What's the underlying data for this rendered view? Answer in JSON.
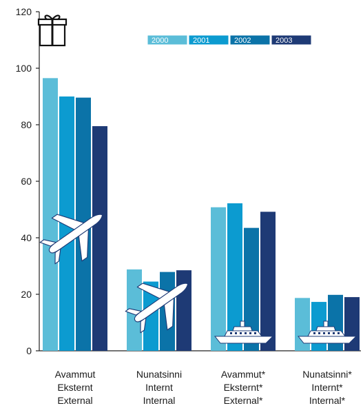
{
  "chart_data": {
    "type": "bar",
    "categories": [
      [
        "Avammut",
        "Eksternt",
        "External"
      ],
      [
        "Nunatsinni",
        "Internt",
        "Internal"
      ],
      [
        "Avammut*",
        "Eksternt*",
        "External*"
      ],
      [
        "Nunatsinni*",
        "Internt*",
        "Internal*"
      ]
    ],
    "series": [
      {
        "name": "2000",
        "color": "#5bbdd8",
        "values": [
          96.5,
          28.8,
          50.8,
          18.7
        ]
      },
      {
        "name": "2001",
        "color": "#0c9bd0",
        "values": [
          90.0,
          24.5,
          52.2,
          17.3
        ]
      },
      {
        "name": "2002",
        "color": "#0b73a8",
        "values": [
          89.6,
          27.9,
          43.5,
          19.8
        ]
      },
      {
        "name": "2003",
        "color": "#1e3a75",
        "values": [
          79.5,
          28.5,
          49.2,
          19.0
        ]
      }
    ],
    "ylim": [
      0,
      120
    ],
    "yticks": [
      0,
      20,
      40,
      60,
      80,
      100,
      120
    ],
    "title": "",
    "xlabel": "",
    "ylabel": "",
    "grid": false,
    "legend_placement": "top-center",
    "icons": [
      "gift-icon",
      "airplane-icon",
      "airplane-icon",
      "ship-icon",
      "ship-icon"
    ]
  }
}
